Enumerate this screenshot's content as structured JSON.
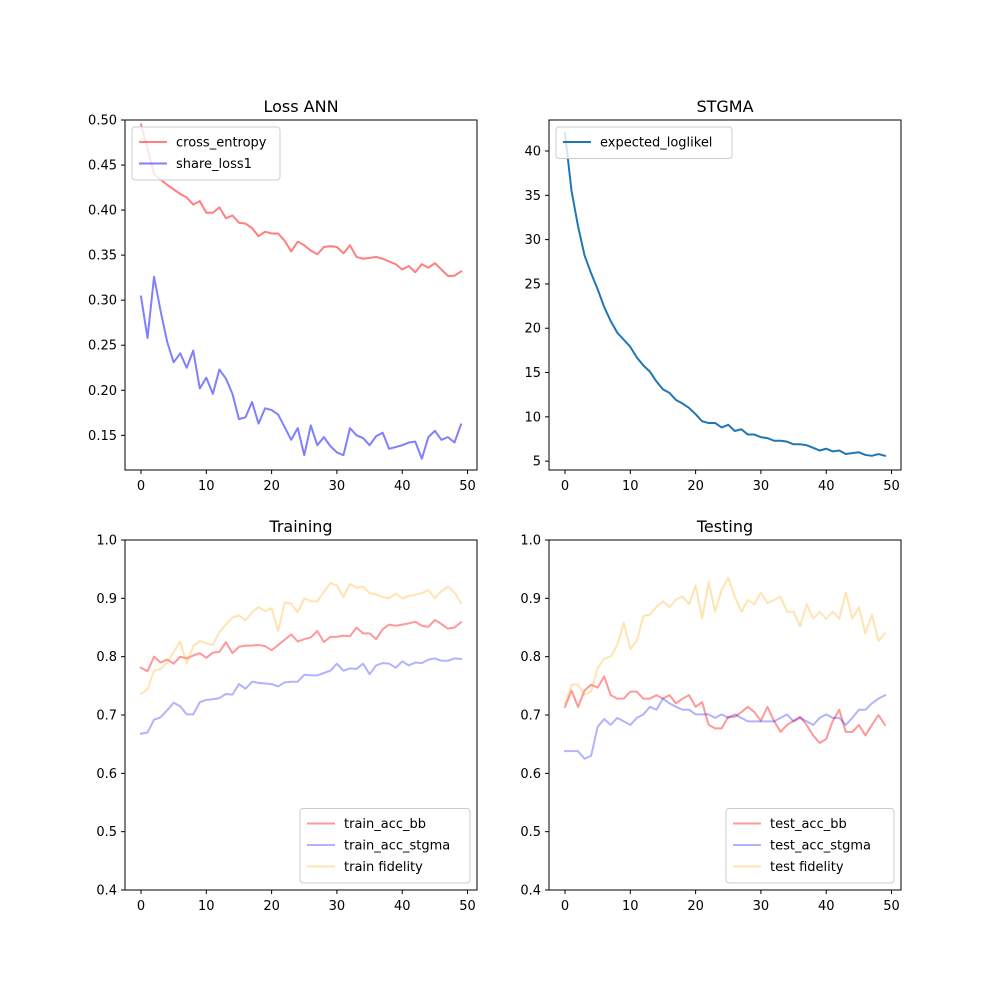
{
  "chart_data": [
    {
      "type": "line",
      "title": "Loss ANN",
      "xlabel": "",
      "ylabel": "",
      "xlim": [
        -2.45,
        51.45
      ],
      "ylim": [
        0.1115,
        0.5
      ],
      "xticks": [
        "0",
        "10",
        "20",
        "30",
        "40",
        "50"
      ],
      "yticks": [
        "0.15",
        "0.20",
        "0.25",
        "0.30",
        "0.35",
        "0.40",
        "0.45",
        "0.50"
      ],
      "legend_position": "upper left",
      "series": [
        {
          "name": "cross_entropy",
          "color": "#ff0000",
          "alpha": 0.5,
          "x": [
            0,
            1,
            2,
            3,
            4,
            5,
            6,
            7,
            8,
            9,
            10,
            11,
            12,
            13,
            14,
            15,
            16,
            17,
            18,
            19,
            20,
            21,
            22,
            23,
            24,
            25,
            26,
            27,
            28,
            29,
            30,
            31,
            32,
            33,
            34,
            35,
            36,
            37,
            38,
            39,
            40,
            41,
            42,
            43,
            44,
            45,
            46,
            47,
            48,
            49
          ],
          "values": [
            0.495,
            0.468,
            0.44,
            0.434,
            0.428,
            0.423,
            0.418,
            0.414,
            0.406,
            0.41,
            0.397,
            0.397,
            0.403,
            0.391,
            0.394,
            0.386,
            0.385,
            0.38,
            0.371,
            0.376,
            0.374,
            0.374,
            0.366,
            0.354,
            0.365,
            0.361,
            0.355,
            0.351,
            0.359,
            0.36,
            0.359,
            0.352,
            0.361,
            0.348,
            0.346,
            0.347,
            0.348,
            0.346,
            0.343,
            0.34,
            0.334,
            0.338,
            0.331,
            0.34,
            0.336,
            0.341,
            0.334,
            0.327,
            0.327,
            0.332
          ]
        },
        {
          "name": "share_loss1",
          "color": "#0000ff",
          "alpha": 0.5,
          "x": [
            0,
            1,
            2,
            3,
            4,
            5,
            6,
            7,
            8,
            9,
            10,
            11,
            12,
            13,
            14,
            15,
            16,
            17,
            18,
            19,
            20,
            21,
            22,
            23,
            24,
            25,
            26,
            27,
            28,
            29,
            30,
            31,
            32,
            33,
            34,
            35,
            36,
            37,
            38,
            39,
            40,
            41,
            42,
            43,
            44,
            45,
            46,
            47,
            48,
            49
          ],
          "values": [
            0.304,
            0.258,
            0.326,
            0.288,
            0.254,
            0.231,
            0.241,
            0.225,
            0.244,
            0.202,
            0.214,
            0.196,
            0.223,
            0.213,
            0.196,
            0.168,
            0.17,
            0.187,
            0.163,
            0.18,
            0.178,
            0.173,
            0.159,
            0.145,
            0.158,
            0.128,
            0.161,
            0.139,
            0.148,
            0.138,
            0.131,
            0.128,
            0.158,
            0.15,
            0.147,
            0.139,
            0.149,
            0.153,
            0.135,
            0.137,
            0.139,
            0.142,
            0.143,
            0.124,
            0.148,
            0.155,
            0.145,
            0.148,
            0.142,
            0.162
          ]
        }
      ]
    },
    {
      "type": "line",
      "title": "STGMA",
      "xlabel": "",
      "ylabel": "",
      "xlim": [
        -2.45,
        51.45
      ],
      "ylim": [
        4,
        43.5
      ],
      "xticks": [
        "0",
        "10",
        "20",
        "30",
        "40",
        "50"
      ],
      "yticks": [
        "5",
        "10",
        "15",
        "20",
        "25",
        "30",
        "35",
        "40"
      ],
      "legend_position": "upper left",
      "series": [
        {
          "name": "expected_loglikel",
          "color": "#1f77b4",
          "alpha": 1.0,
          "x": [
            0,
            1,
            2,
            3,
            4,
            5,
            6,
            7,
            8,
            9,
            10,
            11,
            12,
            13,
            14,
            15,
            16,
            17,
            18,
            19,
            20,
            21,
            22,
            23,
            24,
            25,
            26,
            27,
            28,
            29,
            30,
            31,
            32,
            33,
            34,
            35,
            36,
            37,
            38,
            39,
            40,
            41,
            42,
            43,
            44,
            45,
            46,
            47,
            48,
            49
          ],
          "values": [
            42,
            35.5,
            31.5,
            28.2,
            26.2,
            24.4,
            22.4,
            20.8,
            19.5,
            18.7,
            17.9,
            16.7,
            15.8,
            15.1,
            14,
            13.1,
            12.7,
            11.9,
            11.5,
            11,
            10.3,
            9.5,
            9.3,
            9.3,
            8.8,
            9.1,
            8.4,
            8.6,
            8,
            8,
            7.7,
            7.6,
            7.3,
            7.3,
            7.2,
            6.9,
            6.9,
            6.8,
            6.5,
            6.2,
            6.4,
            6.1,
            6.2,
            5.8,
            5.9,
            6,
            5.7,
            5.6,
            5.8,
            5.6
          ]
        }
      ]
    },
    {
      "type": "line",
      "title": "Training",
      "xlabel": "",
      "ylabel": "",
      "xlim": [
        -2.45,
        51.45
      ],
      "ylim": [
        0.4,
        1.0
      ],
      "xticks": [
        "0",
        "10",
        "20",
        "30",
        "40",
        "50"
      ],
      "yticks": [
        "0.4",
        "0.5",
        "0.6",
        "0.7",
        "0.8",
        "0.9",
        "1.0"
      ],
      "legend_position": "lower right",
      "series": [
        {
          "name": "train_acc_bb",
          "color": "#ff0000",
          "alpha": 0.4,
          "x": [
            0,
            1,
            2,
            3,
            4,
            5,
            6,
            7,
            8,
            9,
            10,
            11,
            12,
            13,
            14,
            15,
            16,
            17,
            18,
            19,
            20,
            21,
            22,
            23,
            24,
            25,
            26,
            27,
            28,
            29,
            30,
            31,
            32,
            33,
            34,
            35,
            36,
            37,
            38,
            39,
            40,
            41,
            42,
            43,
            44,
            45,
            46,
            47,
            48,
            49
          ],
          "values": [
            0.781,
            0.775,
            0.8,
            0.79,
            0.795,
            0.788,
            0.8,
            0.797,
            0.802,
            0.806,
            0.798,
            0.807,
            0.808,
            0.825,
            0.806,
            0.817,
            0.819,
            0.819,
            0.82,
            0.818,
            0.811,
            0.82,
            0.829,
            0.838,
            0.826,
            0.83,
            0.833,
            0.844,
            0.825,
            0.834,
            0.834,
            0.836,
            0.835,
            0.85,
            0.84,
            0.84,
            0.83,
            0.847,
            0.855,
            0.853,
            0.855,
            0.857,
            0.86,
            0.853,
            0.851,
            0.863,
            0.856,
            0.848,
            0.85,
            0.859
          ]
        },
        {
          "name": "train_acc_stgma",
          "color": "#0000ff",
          "alpha": 0.3,
          "x": [
            0,
            1,
            2,
            3,
            4,
            5,
            6,
            7,
            8,
            9,
            10,
            11,
            12,
            13,
            14,
            15,
            16,
            17,
            18,
            19,
            20,
            21,
            22,
            23,
            24,
            25,
            26,
            27,
            28,
            29,
            30,
            31,
            32,
            33,
            34,
            35,
            36,
            37,
            38,
            39,
            40,
            41,
            42,
            43,
            44,
            45,
            46,
            47,
            48,
            49
          ],
          "values": [
            0.668,
            0.67,
            0.692,
            0.696,
            0.708,
            0.721,
            0.715,
            0.701,
            0.701,
            0.722,
            0.726,
            0.727,
            0.729,
            0.736,
            0.735,
            0.753,
            0.745,
            0.757,
            0.755,
            0.754,
            0.753,
            0.749,
            0.756,
            0.757,
            0.757,
            0.769,
            0.768,
            0.768,
            0.772,
            0.776,
            0.788,
            0.776,
            0.78,
            0.779,
            0.788,
            0.77,
            0.785,
            0.789,
            0.788,
            0.781,
            0.792,
            0.785,
            0.79,
            0.789,
            0.795,
            0.797,
            0.793,
            0.793,
            0.797,
            0.796
          ]
        },
        {
          "name": "train fidelity",
          "color": "#ffa500",
          "alpha": 0.3,
          "x": [
            0,
            1,
            2,
            3,
            4,
            5,
            6,
            7,
            8,
            9,
            10,
            11,
            12,
            13,
            14,
            15,
            16,
            17,
            18,
            19,
            20,
            21,
            22,
            23,
            24,
            25,
            26,
            27,
            28,
            29,
            30,
            31,
            32,
            33,
            34,
            35,
            36,
            37,
            38,
            39,
            40,
            41,
            42,
            43,
            44,
            45,
            46,
            47,
            48,
            49
          ],
          "values": [
            0.736,
            0.744,
            0.776,
            0.779,
            0.79,
            0.808,
            0.826,
            0.788,
            0.818,
            0.827,
            0.823,
            0.82,
            0.842,
            0.855,
            0.867,
            0.871,
            0.862,
            0.876,
            0.885,
            0.878,
            0.883,
            0.844,
            0.893,
            0.891,
            0.876,
            0.9,
            0.895,
            0.895,
            0.911,
            0.926,
            0.922,
            0.902,
            0.925,
            0.918,
            0.92,
            0.909,
            0.907,
            0.902,
            0.9,
            0.908,
            0.9,
            0.904,
            0.906,
            0.909,
            0.914,
            0.9,
            0.912,
            0.92,
            0.91,
            0.892
          ]
        }
      ]
    },
    {
      "type": "line",
      "title": "Testing",
      "xlabel": "",
      "ylabel": "",
      "xlim": [
        -2.45,
        51.45
      ],
      "ylim": [
        0.4,
        1.0
      ],
      "xticks": [
        "0",
        "10",
        "20",
        "30",
        "40",
        "50"
      ],
      "yticks": [
        "0.4",
        "0.5",
        "0.6",
        "0.7",
        "0.8",
        "0.9",
        "1.0"
      ],
      "legend_position": "lower right",
      "series": [
        {
          "name": "test_acc_bb",
          "color": "#ff0000",
          "alpha": 0.4,
          "x": [
            0,
            1,
            2,
            3,
            4,
            5,
            6,
            7,
            8,
            9,
            10,
            11,
            12,
            13,
            14,
            15,
            16,
            17,
            18,
            19,
            20,
            21,
            22,
            23,
            24,
            25,
            26,
            27,
            28,
            29,
            30,
            31,
            32,
            33,
            34,
            35,
            36,
            37,
            38,
            39,
            40,
            41,
            42,
            43,
            44,
            45,
            46,
            47,
            48,
            49
          ],
          "values": [
            0.714,
            0.742,
            0.714,
            0.742,
            0.752,
            0.747,
            0.766,
            0.734,
            0.728,
            0.728,
            0.74,
            0.74,
            0.728,
            0.728,
            0.734,
            0.728,
            0.734,
            0.72,
            0.728,
            0.734,
            0.714,
            0.722,
            0.683,
            0.677,
            0.677,
            0.697,
            0.697,
            0.705,
            0.714,
            0.705,
            0.69,
            0.714,
            0.69,
            0.671,
            0.683,
            0.69,
            0.697,
            0.683,
            0.665,
            0.652,
            0.659,
            0.69,
            0.709,
            0.671,
            0.671,
            0.683,
            0.665,
            0.683,
            0.7,
            0.683
          ]
        },
        {
          "name": "test_acc_stgma",
          "color": "#0000ff",
          "alpha": 0.3,
          "x": [
            0,
            1,
            2,
            3,
            4,
            5,
            6,
            7,
            8,
            9,
            10,
            11,
            12,
            13,
            14,
            15,
            16,
            17,
            18,
            19,
            20,
            21,
            22,
            23,
            24,
            25,
            26,
            27,
            28,
            29,
            30,
            31,
            32,
            33,
            34,
            35,
            36,
            37,
            38,
            39,
            40,
            41,
            42,
            43,
            44,
            45,
            46,
            47,
            48,
            49
          ],
          "values": [
            0.638,
            0.638,
            0.638,
            0.625,
            0.63,
            0.68,
            0.693,
            0.683,
            0.695,
            0.689,
            0.683,
            0.695,
            0.701,
            0.714,
            0.709,
            0.728,
            0.72,
            0.714,
            0.709,
            0.709,
            0.701,
            0.701,
            0.701,
            0.695,
            0.701,
            0.695,
            0.701,
            0.695,
            0.689,
            0.689,
            0.689,
            0.689,
            0.689,
            0.695,
            0.701,
            0.689,
            0.695,
            0.689,
            0.683,
            0.695,
            0.701,
            0.695,
            0.695,
            0.683,
            0.695,
            0.709,
            0.709,
            0.72,
            0.728,
            0.734
          ]
        },
        {
          "name": "test fidelity",
          "color": "#ffa500",
          "alpha": 0.3,
          "x": [
            0,
            1,
            2,
            3,
            4,
            5,
            6,
            7,
            8,
            9,
            10,
            11,
            12,
            13,
            14,
            15,
            16,
            17,
            18,
            19,
            20,
            21,
            22,
            23,
            24,
            25,
            26,
            27,
            28,
            29,
            30,
            31,
            32,
            33,
            34,
            35,
            36,
            37,
            38,
            39,
            40,
            41,
            42,
            43,
            44,
            45,
            46,
            47,
            48,
            49
          ],
          "values": [
            0.72,
            0.752,
            0.752,
            0.735,
            0.74,
            0.78,
            0.797,
            0.8,
            0.82,
            0.858,
            0.813,
            0.827,
            0.87,
            0.872,
            0.885,
            0.895,
            0.885,
            0.898,
            0.903,
            0.89,
            0.922,
            0.865,
            0.928,
            0.877,
            0.915,
            0.935,
            0.903,
            0.877,
            0.897,
            0.89,
            0.91,
            0.892,
            0.897,
            0.903,
            0.877,
            0.877,
            0.852,
            0.89,
            0.865,
            0.877,
            0.865,
            0.877,
            0.865,
            0.91,
            0.865,
            0.885,
            0.84,
            0.872,
            0.827,
            0.84
          ]
        }
      ]
    }
  ]
}
